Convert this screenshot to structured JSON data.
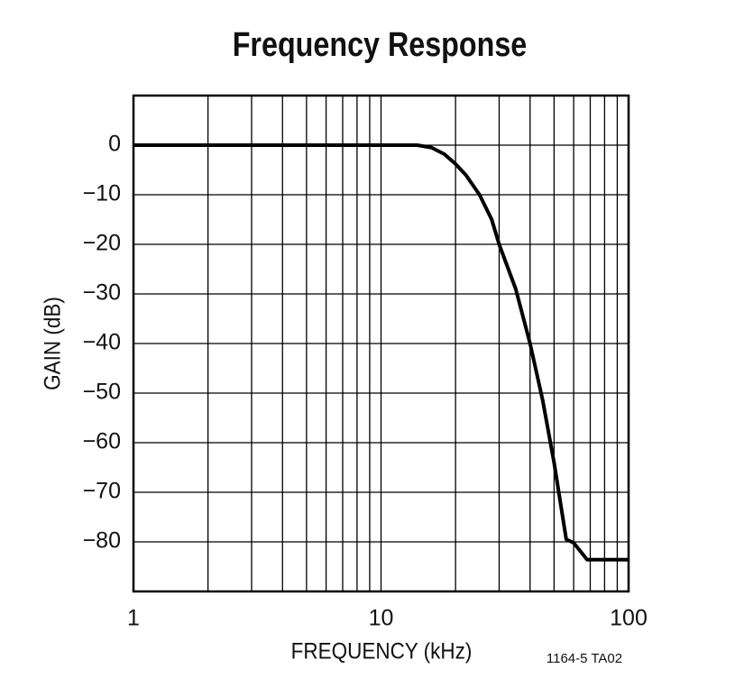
{
  "chart_data": {
    "type": "line",
    "title": "Frequency Response",
    "x_label": "FREQUENCY (kHz)",
    "y_label": "GAIN (dB)",
    "note": "1164-5 TA02",
    "log_x": true,
    "grid": true,
    "color": "#000000",
    "x": [
      1,
      14,
      16,
      18,
      20,
      22,
      25,
      28,
      30,
      35,
      40,
      45,
      50,
      56,
      60,
      68,
      100
    ],
    "values": [
      0,
      0,
      -0.5,
      -1.8,
      -3.8,
      -6,
      -10,
      -15,
      -20,
      -29,
      -40,
      -51.5,
      -64,
      -79.5,
      -80.2,
      -83.6,
      -83.6
    ],
    "xlim": [
      1,
      100
    ],
    "xticks": [
      1,
      10,
      100
    ],
    "minor_xticks": [
      2,
      3,
      4,
      5,
      6,
      7,
      8,
      9,
      20,
      30,
      40,
      50,
      60,
      70,
      80,
      90
    ],
    "ylim": [
      -90,
      10
    ],
    "yticks": [
      0,
      {
        "value": -10,
        "label": "−10"
      },
      {
        "value": -20,
        "label": "−20"
      },
      {
        "value": -30,
        "label": "−30"
      },
      {
        "value": -40,
        "label": "−40"
      },
      {
        "value": -50,
        "label": "−50"
      },
      {
        "value": -60,
        "label": "−60"
      },
      {
        "value": -70,
        "label": "−70"
      },
      {
        "value": -80,
        "label": "−80"
      }
    ]
  }
}
